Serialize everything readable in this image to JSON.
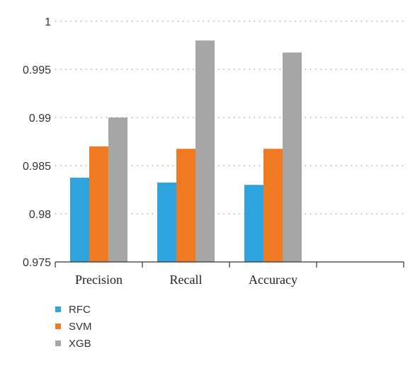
{
  "chart_data": {
    "type": "bar",
    "categories": [
      "Precision",
      "Recall",
      "Accuracy",
      ""
    ],
    "series": [
      {
        "name": "RFC",
        "values": [
          0.98375,
          0.98325,
          0.983,
          null
        ],
        "color": "#2ea3dd"
      },
      {
        "name": "SVM",
        "values": [
          0.987,
          0.98675,
          0.98675,
          null
        ],
        "color": "#f07a22"
      },
      {
        "name": "XGB",
        "values": [
          0.99,
          0.998,
          0.99675,
          null
        ],
        "color": "#a6a6a6"
      }
    ],
    "ylim": [
      0.975,
      1
    ],
    "yticks": [
      0.975,
      0.98,
      0.985,
      0.99,
      0.995,
      1
    ],
    "ytick_labels": [
      "0.975",
      "0.98",
      "0.985",
      "0.99",
      "0.995",
      "1"
    ],
    "grid": true,
    "legend_position": "bottom-left"
  }
}
